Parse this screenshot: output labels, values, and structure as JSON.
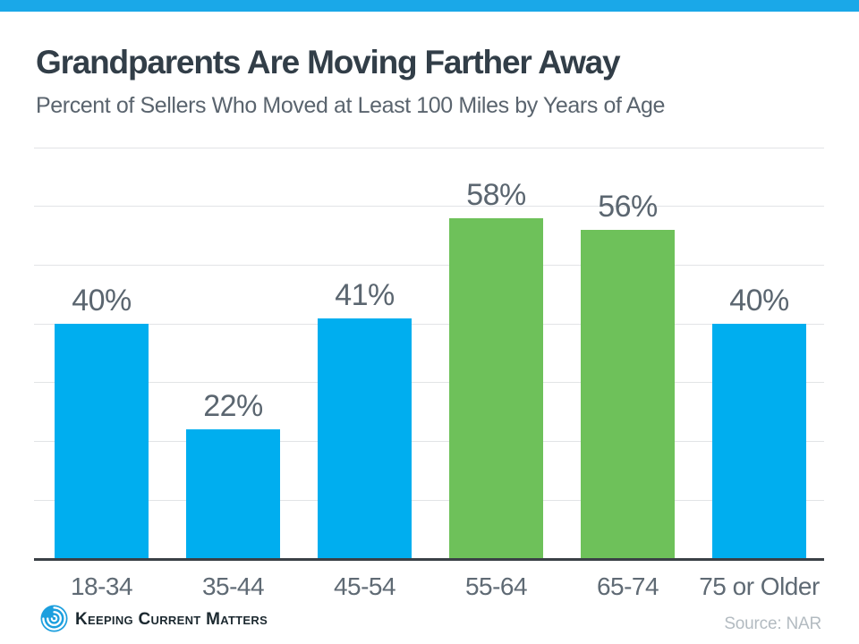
{
  "chart_data": {
    "type": "bar",
    "title": "Grandparents Are Moving Farther Away",
    "subtitle": "Percent of Sellers Who Moved at Least 100 Miles by Years of Age",
    "categories": [
      "18-34",
      "35-44",
      "45-54",
      "55-64",
      "65-74",
      "75 or Older"
    ],
    "values": [
      40,
      22,
      41,
      58,
      56,
      40
    ],
    "value_labels": [
      "40%",
      "22%",
      "41%",
      "58%",
      "56%",
      "40%"
    ],
    "bar_colors": [
      "#00AEEF",
      "#00AEEF",
      "#00AEEF",
      "#6EC15A",
      "#6EC15A",
      "#00AEEF"
    ],
    "xlabel": "",
    "ylabel": "",
    "ylim": [
      0,
      70
    ],
    "grid": true,
    "gridline_step": 10,
    "y_tick_labels_shown": false,
    "legend": false
  },
  "branding": {
    "logo_text": "Keeping Current Matters",
    "logo_icon": "kcm-swirl-icon"
  },
  "source": {
    "label": "Source: NAR"
  },
  "colors": {
    "accent_stripe": "#1AA8E8",
    "bar_blue": "#00AEEF",
    "bar_green": "#6EC15A",
    "title_text": "#323E48",
    "subtitle_text": "#5A646E",
    "data_label_text": "#5B6670",
    "axis_label_text": "#5F6A74",
    "gridline": "#E2E4E6",
    "baseline": "#3A4046",
    "source_text": "#B3BBC1",
    "logo_blue": "#1C9FDE",
    "logo_text_color": "#1C2930"
  }
}
